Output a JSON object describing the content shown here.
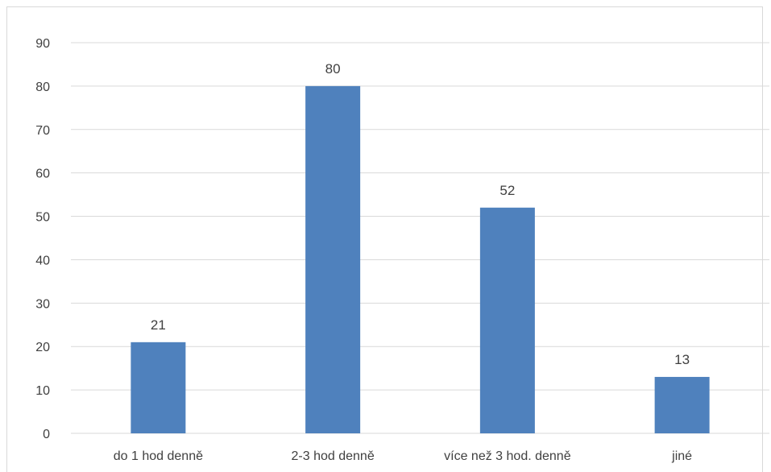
{
  "chart_data": {
    "type": "bar",
    "title": "",
    "xlabel": "",
    "ylabel": "",
    "categories": [
      "do 1 hod denně",
      "2-3 hod denně",
      "více než 3 hod. denně",
      "jiné"
    ],
    "values": [
      21,
      80,
      52,
      13
    ],
    "ylim": [
      0,
      90
    ],
    "yticks": [
      0,
      10,
      20,
      30,
      40,
      50,
      60,
      70,
      80,
      90
    ],
    "grid": true,
    "legend": "none",
    "bar_color": "#4f81bd",
    "grid_color": "#d9d9d9",
    "text_color": "#404040"
  }
}
